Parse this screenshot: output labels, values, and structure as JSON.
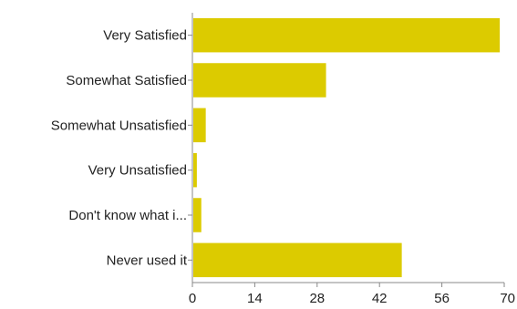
{
  "chart_data": {
    "type": "bar",
    "orientation": "horizontal",
    "categories": [
      "Very Satisfied",
      "Somewhat Satisfied",
      "Somewhat Unsatisfied",
      "Very Unsatisfied",
      "Don't know what i...",
      "Never used it"
    ],
    "values": [
      69,
      30,
      3,
      1,
      2,
      47
    ],
    "xlim": [
      0,
      70
    ],
    "xticks": [
      0,
      14,
      28,
      42,
      56,
      70
    ],
    "bar_color": "#dccb00",
    "title": "",
    "xlabel": "",
    "ylabel": "",
    "grid": false,
    "legend": "none"
  }
}
